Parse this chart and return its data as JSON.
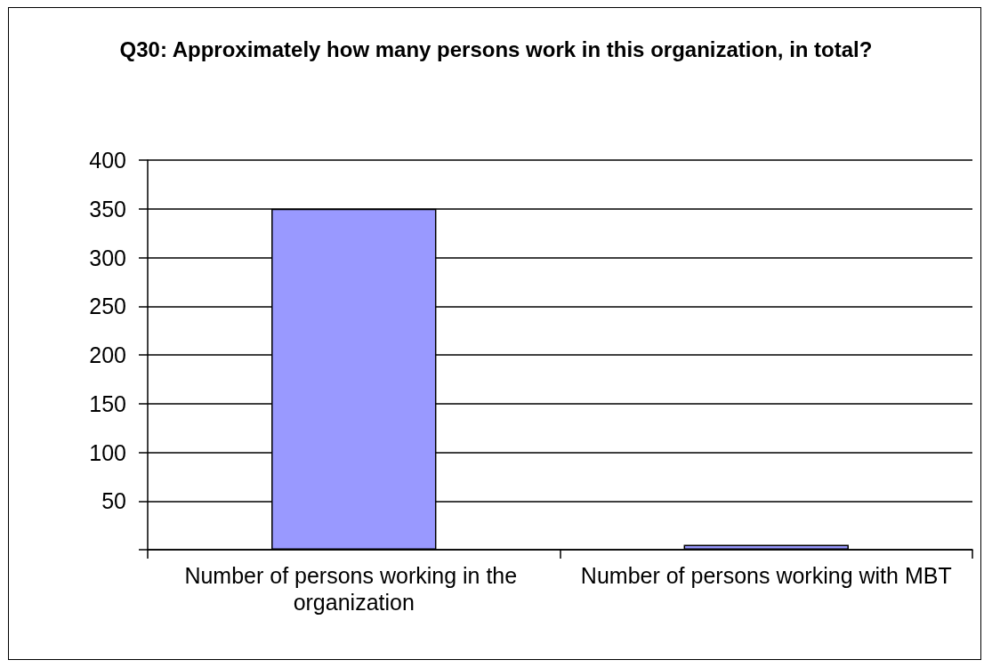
{
  "chart_data": {
    "type": "bar",
    "title": "Q30: Approximately how many persons work in this organization, in total?",
    "categories": [
      "Number of persons working in the organization",
      "Number of persons working with MBT"
    ],
    "values": [
      350,
      5
    ],
    "color": "#9999ff",
    "ylim": [
      0,
      400
    ],
    "yticks": [
      {
        "value": 0,
        "label": null
      },
      50,
      100,
      150,
      200,
      250,
      300,
      350,
      400
    ],
    "grid": "y"
  }
}
